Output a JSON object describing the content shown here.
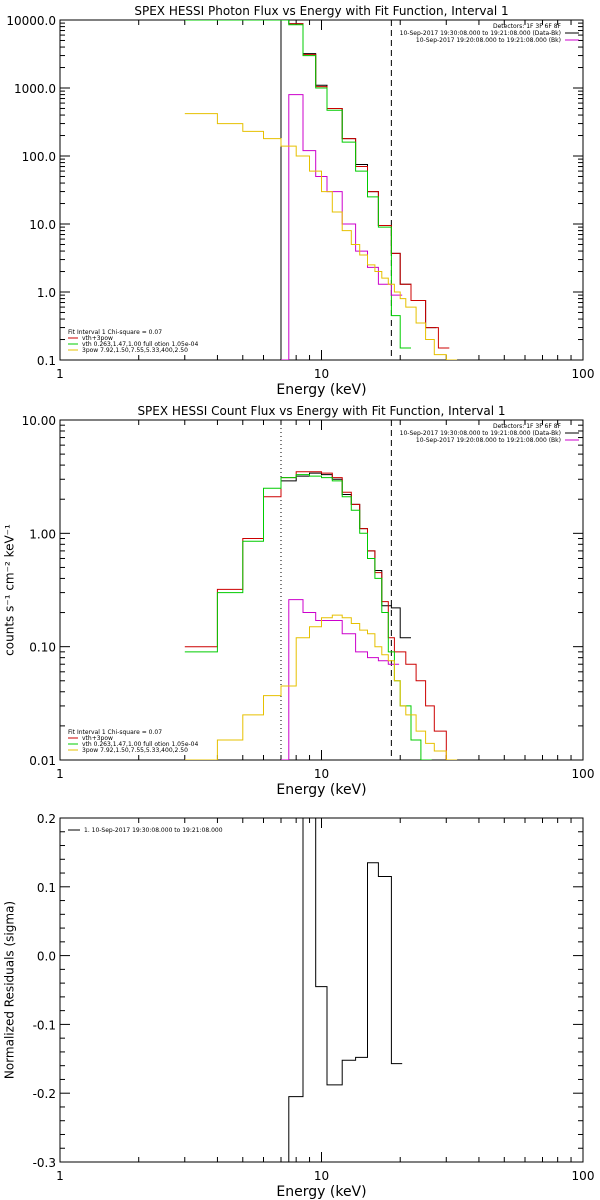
{
  "chart_data": [
    {
      "type": "line",
      "title": "SPEX HESSI Photon Flux vs Energy with Fit Function, Interval 1",
      "xlabel": "Energy (keV)",
      "ylabel": "",
      "xscale": "log",
      "yscale": "log",
      "xlim": [
        1,
        100
      ],
      "ylim": [
        0.1,
        10000
      ],
      "x_tick_labels": [
        "1",
        "10",
        "100"
      ],
      "y_ticks": [
        0.1,
        1,
        10,
        100,
        1000,
        10000
      ],
      "y_tick_labels": [
        "0.1",
        "1.0",
        "10.0",
        "100.0",
        "1000.0",
        "10000.0"
      ],
      "vlines": [
        {
          "x": 7.0,
          "style": "solid",
          "color": "#000000"
        },
        {
          "x": 18.5,
          "style": "dashed",
          "color": "#000000"
        }
      ],
      "legend_top": {
        "placement": "top-right",
        "items": [
          "Detectors: 1F 3F 6F 8F",
          "10-Sep-2017 19:30:08.000 to 19:21:08.000 (Data-Bk)",
          "10-Sep-2017 19:20:08.000 to 19:21:08.000 (Bk)"
        ],
        "colors": [
          "",
          "#000000",
          "#cc00cc"
        ]
      },
      "legend_bottom": {
        "placement": "bottom-left",
        "items": [
          "Fit Interval 1    Chi-square = 0.07",
          "vth+3pow",
          "vth 0.263,1.47,1.00  full otion 1.05e-04",
          "3pow 7.92,1.50,7.55,5.33,400,2.50"
        ],
        "colors": [
          "",
          "#cc0000",
          "#00cc00",
          "#e6c000"
        ]
      },
      "series": [
        {
          "color": "#000000",
          "style": "solid",
          "x": [
            7.0,
            7.5,
            8.5,
            9.5,
            10.5,
            12.0,
            13.5,
            15.0,
            16.5,
            18.5,
            20.0,
            22.0,
            25.0
          ],
          "values": [
            10000,
            8800,
            3200,
            1100,
            500,
            180,
            75,
            30,
            9.5,
            3.7,
            1.3,
            0.75,
            0.3
          ]
        },
        {
          "color": "#cc0000",
          "style": "solid",
          "x": [
            7.5,
            8.5,
            9.5,
            10.5,
            12.0,
            13.5,
            15.0,
            16.5,
            18.5,
            20.0,
            22.0,
            25.0,
            28.0
          ],
          "values": [
            8800,
            3100,
            1050,
            500,
            180,
            70,
            30,
            9.5,
            3.7,
            1.3,
            0.75,
            0.3,
            0.15
          ]
        },
        {
          "color": "#00cc00",
          "style": "solid",
          "x": [
            3.0,
            7.5,
            8.5,
            9.5,
            10.5,
            12.0,
            13.5,
            15.0,
            16.5,
            18.5,
            20.0
          ],
          "values": [
            10000,
            8500,
            3000,
            1000,
            470,
            160,
            60,
            25,
            9,
            0.45,
            0.15
          ]
        },
        {
          "color": "#cc00cc",
          "style": "solid",
          "x": [
            7.0,
            7.5,
            8.5,
            9.5,
            10.5,
            12.0,
            13.5,
            15.0,
            16.5,
            18.5
          ],
          "values": [
            0.1,
            800,
            120,
            50,
            30,
            10,
            4,
            2.3,
            1.3,
            0.9
          ]
        },
        {
          "color": "#e6c000",
          "style": "solid",
          "x": [
            3.0,
            4.0,
            5.0,
            6.0,
            7.0,
            8.0,
            9.0,
            10.0,
            11.0,
            12.0,
            13.0,
            14.0,
            15.0,
            16.0,
            17.0,
            18.0,
            19.0,
            20.0,
            21.0,
            23.0,
            25.0,
            27.0,
            30.0
          ],
          "values": [
            420,
            300,
            230,
            180,
            140,
            100,
            60,
            30,
            15,
            8,
            5,
            3.5,
            2.5,
            2.0,
            1.6,
            1.3,
            1.0,
            0.8,
            0.6,
            0.35,
            0.2,
            0.12,
            0.1
          ]
        }
      ]
    },
    {
      "type": "line",
      "title": "SPEX HESSI Count Flux vs Energy with Fit Function, Interval 1",
      "xlabel": "Energy (keV)",
      "ylabel": "counts s⁻¹ cm⁻² keV⁻¹",
      "xscale": "log",
      "yscale": "log",
      "xlim": [
        1,
        100
      ],
      "ylim": [
        0.01,
        10
      ],
      "x_tick_labels": [
        "1",
        "10",
        "100"
      ],
      "y_ticks": [
        0.01,
        0.1,
        1,
        10
      ],
      "y_tick_labels": [
        "0.01",
        "0.10",
        "1.00",
        "10.00"
      ],
      "vlines": [
        {
          "x": 7.0,
          "style": "dotted",
          "color": "#000000"
        },
        {
          "x": 18.5,
          "style": "dashed",
          "color": "#000000"
        }
      ],
      "legend_top": {
        "placement": "top-right",
        "items": [
          "Detectors: 1F 3F 6F 8F",
          "10-Sep-2017 19:30:08.000 to 19:21:08.000 (Data-Bk)",
          "10-Sep-2017 19:20:08.000 to 19:21:08.000 (Bk)"
        ],
        "colors": [
          "",
          "#000000",
          "#cc00cc"
        ]
      },
      "legend_bottom": {
        "placement": "bottom-left",
        "items": [
          "Fit Interval 1    Chi-square = 0.07",
          "vth+3pow",
          "vth 0.263,1.47,1.00  full otion 1.05e-04",
          "3pow 7.92,1.50,7.55,5.33,400,2.50"
        ],
        "colors": [
          "",
          "#cc0000",
          "#00cc00",
          "#e6c000"
        ]
      },
      "series": [
        {
          "color": "#000000",
          "style": "solid",
          "x": [
            7.0,
            8.0,
            9.0,
            10.0,
            11.0,
            12.0,
            13.0,
            14.0,
            15.0,
            16.0,
            17.0,
            18.0,
            18.5,
            20.0
          ],
          "values": [
            2.9,
            3.2,
            3.4,
            3.3,
            3.0,
            2.2,
            1.8,
            1.1,
            0.7,
            0.47,
            0.23,
            0.23,
            0.22,
            0.12
          ]
        },
        {
          "color": "#cc0000",
          "style": "solid",
          "x": [
            3.0,
            4.0,
            5.0,
            6.0,
            7.0,
            8.0,
            9.0,
            10.0,
            11.0,
            12.0,
            13.0,
            14.0,
            15.0,
            16.0,
            17.0,
            18.0,
            19.0,
            21.0,
            23.0,
            25.0,
            27.0,
            30.0
          ],
          "values": [
            0.1,
            0.32,
            0.9,
            2.1,
            3.1,
            3.5,
            3.5,
            3.4,
            3.1,
            2.3,
            1.8,
            1.1,
            0.7,
            0.45,
            0.25,
            0.12,
            0.09,
            0.07,
            0.05,
            0.03,
            0.018,
            0.01
          ]
        },
        {
          "color": "#00cc00",
          "style": "solid",
          "x": [
            3.0,
            4.0,
            5.0,
            6.0,
            7.0,
            8.0,
            9.0,
            10.0,
            11.0,
            12.0,
            13.0,
            14.0,
            15.0,
            16.0,
            17.0,
            18.0,
            19.0,
            20.0,
            22.0,
            24.0
          ],
          "values": [
            0.09,
            0.3,
            0.85,
            2.5,
            3.1,
            3.3,
            3.2,
            3.1,
            2.9,
            2.1,
            1.6,
            1.0,
            0.6,
            0.4,
            0.2,
            0.09,
            0.05,
            0.03,
            0.015,
            0.01
          ]
        },
        {
          "color": "#cc00cc",
          "style": "solid",
          "x": [
            7.0,
            7.5,
            8.5,
            9.5,
            10.5,
            12.0,
            13.5,
            15.0,
            16.5,
            18.0
          ],
          "values": [
            0.01,
            0.26,
            0.2,
            0.17,
            0.17,
            0.13,
            0.09,
            0.08,
            0.075,
            0.07
          ]
        },
        {
          "color": "#e6c000",
          "style": "solid",
          "x": [
            3.0,
            4.0,
            5.0,
            6.0,
            7.0,
            8.0,
            9.0,
            10.0,
            11.0,
            12.0,
            13.0,
            14.0,
            15.0,
            16.0,
            17.0,
            18.0,
            19.0,
            20.0,
            21.0,
            23.0,
            25.0,
            27.0,
            30.0
          ],
          "values": [
            0.01,
            0.015,
            0.025,
            0.037,
            0.045,
            0.12,
            0.15,
            0.18,
            0.19,
            0.18,
            0.16,
            0.14,
            0.13,
            0.1,
            0.085,
            0.075,
            0.05,
            0.03,
            0.025,
            0.018,
            0.014,
            0.012,
            0.01
          ]
        }
      ]
    },
    {
      "type": "line",
      "title": "",
      "xlabel": "Energy (keV)",
      "ylabel": "Normalized Residuals (sigma)",
      "xscale": "log",
      "yscale": "linear",
      "xlim": [
        1,
        100
      ],
      "ylim": [
        -0.3,
        0.2
      ],
      "x_tick_labels": [
        "1",
        "10",
        "100"
      ],
      "y_ticks": [
        -0.3,
        -0.2,
        -0.1,
        0.0,
        0.1,
        0.2
      ],
      "y_tick_labels": [
        "-0.3",
        "-0.2",
        "-0.1",
        "0.0",
        "0.1",
        "0.2"
      ],
      "vlines": [],
      "legend_top": {
        "placement": "top-left",
        "items": [
          "1. 10-Sep-2017 19:30:08.000 to 19:21:08.000"
        ],
        "colors": [
          "#000000"
        ]
      },
      "legend_bottom": {
        "placement": "",
        "items": [],
        "colors": []
      },
      "series": [
        {
          "color": "#000000",
          "style": "solid",
          "x": [
            7.0,
            7.5,
            8.5,
            9.5,
            10.5,
            12.0,
            13.5,
            15.0,
            16.5,
            18.5
          ],
          "values": [
            -0.3,
            -0.205,
            0.2,
            -0.045,
            -0.188,
            -0.152,
            -0.148,
            0.135,
            0.115,
            -0.157
          ]
        }
      ]
    }
  ]
}
